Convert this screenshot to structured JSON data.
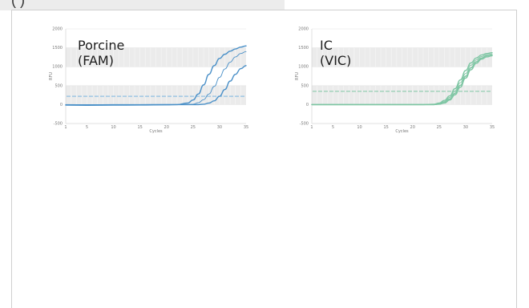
{
  "tab": {
    "label": "(                    )"
  },
  "chart_data": [
    {
      "type": "line",
      "title": "Porcine\n(FAM)",
      "xlabel": "Cycles",
      "ylabel": "RFU",
      "xlim": [
        1,
        35
      ],
      "ylim": [
        -500,
        2000
      ],
      "xticks": [
        1,
        5,
        10,
        15,
        20,
        25,
        30,
        35
      ],
      "yticks": [
        2000,
        1500,
        1000,
        500,
        0,
        -500
      ],
      "grid": true,
      "threshold": 220,
      "color": "#4a90c8",
      "threshold_color": "#6aaedd",
      "band_color": "#ebebeb",
      "series": [
        {
          "x": [
            1,
            5,
            10,
            15,
            20,
            22,
            24,
            25,
            26,
            27,
            28,
            29,
            30,
            31,
            32,
            33,
            34,
            35
          ],
          "y": [
            -15,
            -18,
            -15,
            -10,
            -5,
            0,
            40,
            120,
            280,
            520,
            800,
            1030,
            1220,
            1330,
            1410,
            1470,
            1520,
            1550
          ]
        },
        {
          "x": [
            1,
            5,
            10,
            15,
            20,
            22,
            24,
            25,
            26,
            27,
            28,
            29,
            30,
            31,
            32,
            33,
            34,
            35
          ],
          "y": [
            -8,
            -10,
            -8,
            -5,
            0,
            0,
            0,
            10,
            50,
            130,
            280,
            480,
            720,
            940,
            1120,
            1260,
            1350,
            1400
          ]
        },
        {
          "x": [
            1,
            5,
            10,
            15,
            20,
            22,
            24,
            25,
            26,
            27,
            28,
            29,
            30,
            31,
            32,
            33,
            34,
            35
          ],
          "y": [
            -5,
            -6,
            -5,
            -3,
            0,
            0,
            0,
            0,
            0,
            10,
            40,
            100,
            220,
            400,
            620,
            800,
            950,
            1030
          ]
        }
      ]
    },
    {
      "type": "line",
      "title": "IC\n(VIC)",
      "xlabel": "Cycles",
      "ylabel": "RFU",
      "xlim": [
        1,
        35
      ],
      "ylim": [
        -500,
        2000
      ],
      "xticks": [
        1,
        5,
        10,
        15,
        20,
        25,
        30,
        35
      ],
      "yticks": [
        2000,
        1500,
        1000,
        500,
        0,
        -500
      ],
      "grid": true,
      "threshold": 350,
      "color": "#7fc6a4",
      "threshold_color": "#7fc6a4",
      "band_color": "#ebebeb",
      "series": [
        {
          "x": [
            1,
            5,
            10,
            15,
            20,
            22,
            24,
            25,
            26,
            27,
            28,
            29,
            30,
            31,
            32,
            33,
            34,
            35
          ],
          "y": [
            0,
            0,
            0,
            0,
            0,
            0,
            10,
            40,
            110,
            230,
            420,
            650,
            900,
            1100,
            1230,
            1310,
            1350,
            1370
          ]
        },
        {
          "x": [
            1,
            5,
            10,
            15,
            20,
            22,
            24,
            25,
            26,
            27,
            28,
            29,
            30,
            31,
            32,
            33,
            34,
            35
          ],
          "y": [
            0,
            0,
            0,
            0,
            0,
            0,
            5,
            25,
            80,
            190,
            360,
            580,
            820,
            1040,
            1180,
            1270,
            1320,
            1340
          ]
        },
        {
          "x": [
            1,
            5,
            10,
            15,
            20,
            22,
            24,
            25,
            26,
            27,
            28,
            29,
            30,
            31,
            32,
            33,
            34,
            35
          ],
          "y": [
            0,
            0,
            0,
            0,
            0,
            0,
            0,
            15,
            55,
            150,
            300,
            510,
            750,
            970,
            1130,
            1230,
            1290,
            1310
          ]
        },
        {
          "x": [
            1,
            5,
            10,
            15,
            20,
            22,
            24,
            25,
            26,
            27,
            28,
            29,
            30,
            31,
            32,
            33,
            34,
            35
          ],
          "y": [
            0,
            0,
            0,
            0,
            0,
            0,
            0,
            10,
            40,
            120,
            260,
            460,
            700,
            920,
            1090,
            1200,
            1260,
            1290
          ]
        }
      ]
    }
  ]
}
